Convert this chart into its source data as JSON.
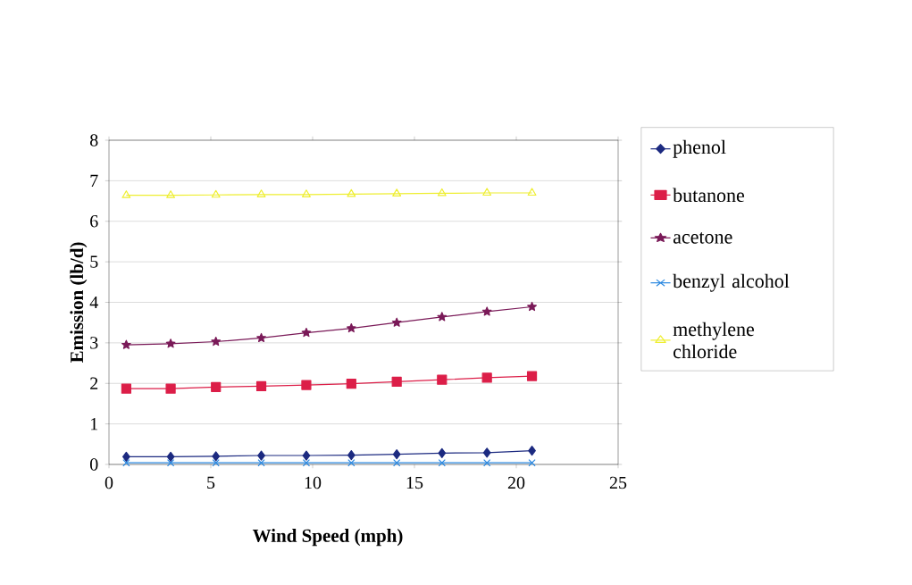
{
  "chart_data": {
    "type": "line",
    "xlabel": "Wind Speed (mph)",
    "ylabel": "Emission (lb/d)",
    "xlim": [
      0,
      25
    ],
    "ylim": [
      0,
      8
    ],
    "xticks": [
      0,
      5,
      10,
      15,
      20,
      25
    ],
    "yticks": [
      0,
      1,
      2,
      3,
      4,
      5,
      6,
      7,
      8
    ],
    "grid": "y",
    "legend": "right",
    "line_style": "solid",
    "x": [
      0.85,
      3.03,
      5.25,
      7.48,
      9.69,
      11.9,
      14.13,
      16.35,
      18.56,
      20.77
    ],
    "series": [
      {
        "name": "phenol",
        "color": "#1c2a80",
        "marker": "diamond",
        "values": [
          0.19,
          0.19,
          0.2,
          0.22,
          0.22,
          0.23,
          0.25,
          0.28,
          0.29,
          0.34
        ]
      },
      {
        "name": "butanone",
        "color": "#dc1e48",
        "marker": "square",
        "values": [
          1.87,
          1.87,
          1.91,
          1.93,
          1.96,
          1.99,
          2.04,
          2.09,
          2.14,
          2.18
        ]
      },
      {
        "name": "acetone",
        "color": "#7a1a58",
        "marker": "star",
        "values": [
          2.95,
          2.98,
          3.03,
          3.12,
          3.25,
          3.36,
          3.5,
          3.64,
          3.77,
          3.89
        ]
      },
      {
        "name": "benzyl alcohol",
        "color": "#2a88e0",
        "marker": "cross",
        "values": [
          0.04,
          0.04,
          0.04,
          0.04,
          0.04,
          0.04,
          0.04,
          0.04,
          0.04,
          0.04
        ]
      },
      {
        "name": "methylene chloride",
        "color": "#eeee30",
        "marker": "triangle",
        "values": [
          6.64,
          6.64,
          6.65,
          6.66,
          6.66,
          6.67,
          6.68,
          6.69,
          6.7,
          6.7
        ]
      }
    ]
  }
}
